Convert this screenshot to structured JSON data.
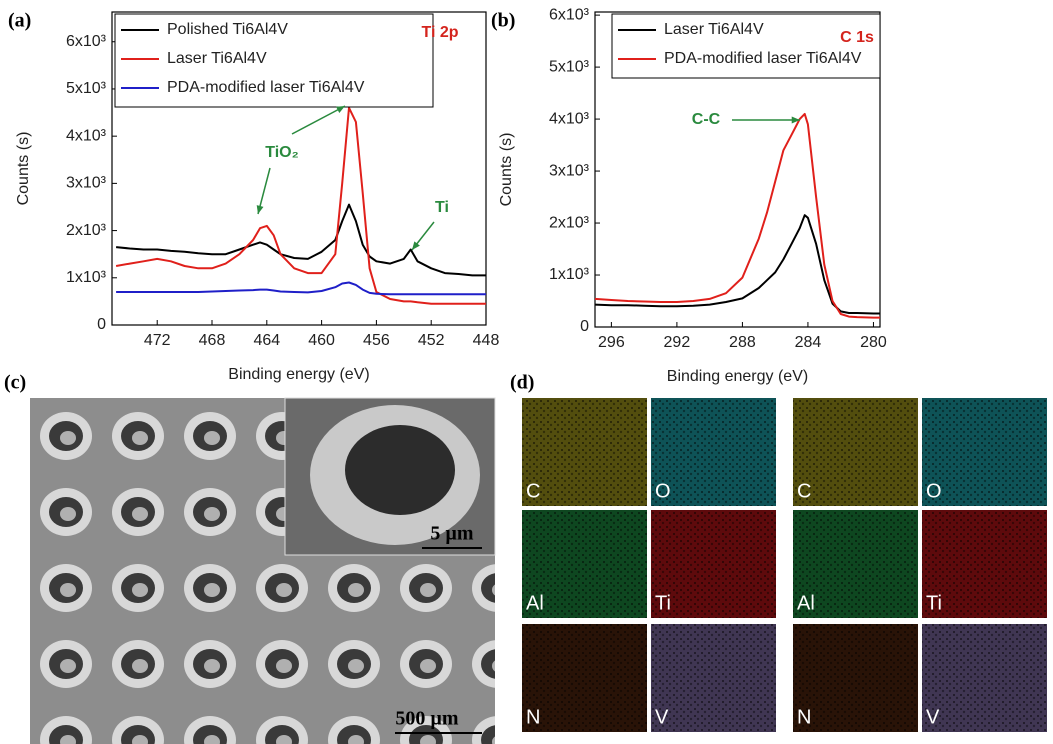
{
  "chart_data": [
    {
      "type": "line",
      "panel": "(a)",
      "ylabel": "Counts (s)",
      "xlabel": "Binding energy (eV)",
      "xlim": [
        475.3,
        448
      ],
      "xticks": [
        472,
        468,
        464,
        460,
        456,
        452,
        448
      ],
      "ylim": [
        0,
        6630
      ],
      "yticks": [
        0,
        {
          "value": 1000,
          "label": "1x10³"
        },
        {
          "value": 2000,
          "label": "2x10³"
        },
        {
          "value": 3000,
          "label": "3x10³"
        },
        {
          "value": 4000,
          "label": "4x10³"
        },
        {
          "value": 5000,
          "label": "5x10³"
        },
        {
          "value": 6000,
          "label": "6x10³"
        }
      ],
      "legend": "upper left",
      "annotations": [
        "Ti 2p",
        "TiO₂",
        "Ti"
      ],
      "x": [
        475,
        474,
        473,
        472,
        471,
        470,
        469,
        468,
        467,
        466,
        465,
        464.5,
        464,
        463.5,
        463,
        462,
        461,
        460,
        459,
        458.5,
        458,
        457.5,
        457,
        456.5,
        456,
        455,
        454,
        453.5,
        453,
        452,
        451,
        450,
        449,
        448
      ],
      "series": [
        {
          "name": "Polished Ti6Al4V",
          "color": "#000000",
          "values": [
            1650,
            1620,
            1600,
            1600,
            1570,
            1550,
            1520,
            1500,
            1500,
            1600,
            1700,
            1750,
            1700,
            1600,
            1500,
            1420,
            1400,
            1550,
            1800,
            2200,
            2550,
            2200,
            1700,
            1450,
            1350,
            1300,
            1400,
            1600,
            1350,
            1200,
            1100,
            1080,
            1050,
            1050
          ]
        },
        {
          "name": "Laser Ti6Al4V",
          "color": "#e0201b",
          "values": [
            1250,
            1300,
            1350,
            1400,
            1350,
            1250,
            1200,
            1200,
            1300,
            1500,
            1800,
            2050,
            2100,
            1900,
            1500,
            1200,
            1100,
            1100,
            1500,
            3000,
            4600,
            4300,
            2800,
            1200,
            700,
            550,
            500,
            500,
            480,
            450,
            450,
            450,
            450,
            450
          ]
        },
        {
          "name": "PDA-modified laser Ti6Al4V",
          "color": "#1f1fc8",
          "values": [
            700,
            700,
            700,
            700,
            700,
            700,
            700,
            710,
            720,
            730,
            740,
            750,
            750,
            730,
            710,
            700,
            690,
            720,
            800,
            880,
            900,
            850,
            750,
            680,
            660,
            650,
            650,
            650,
            650,
            650,
            650,
            650,
            650,
            650
          ]
        }
      ]
    },
    {
      "type": "line",
      "panel": "(b)",
      "ylabel": "Counts (s)",
      "xlabel": "Binding energy (eV)",
      "xlim": [
        297,
        279.6
      ],
      "xticks": [
        296,
        292,
        288,
        284,
        280
      ],
      "ylim": [
        0,
        6060
      ],
      "yticks": [
        0,
        {
          "value": 1000,
          "label": "1x10³"
        },
        {
          "value": 2000,
          "label": "2x10³"
        },
        {
          "value": 3000,
          "label": "3x10³"
        },
        {
          "value": 4000,
          "label": "4x10³"
        },
        {
          "value": 5000,
          "label": "5x10³"
        },
        {
          "value": 6000,
          "label": "6x10³"
        }
      ],
      "legend": "upper left",
      "annotations": [
        "C 1s",
        "C-C"
      ],
      "x": [
        297,
        296,
        295,
        294,
        293,
        292,
        291,
        290,
        289,
        288,
        287,
        286.5,
        286,
        285.5,
        285,
        284.5,
        284.2,
        284,
        283.5,
        283,
        282.5,
        282,
        281.5,
        281,
        280,
        279.6
      ],
      "series": [
        {
          "name": "Laser Ti6Al4V",
          "color": "#000000",
          "values": [
            430,
            420,
            420,
            410,
            400,
            400,
            410,
            430,
            480,
            550,
            750,
            900,
            1050,
            1300,
            1600,
            1900,
            2150,
            2100,
            1600,
            900,
            450,
            300,
            270,
            270,
            260,
            260
          ]
        },
        {
          "name": "PDA-modified laser Ti6Al4V",
          "color": "#e0201b",
          "values": [
            540,
            520,
            500,
            490,
            480,
            480,
            500,
            540,
            650,
            950,
            1700,
            2200,
            2800,
            3400,
            3700,
            4000,
            4100,
            3900,
            2500,
            1200,
            500,
            250,
            200,
            190,
            180,
            180
          ]
        }
      ]
    }
  ],
  "panel_c": {
    "label": "(c)",
    "scale_inset": "5 µm",
    "scale_main": "500 µm"
  },
  "panel_d": {
    "label": "(d)",
    "maps": [
      "C",
      "O",
      "Al",
      "Ti",
      "N",
      "V"
    ]
  }
}
